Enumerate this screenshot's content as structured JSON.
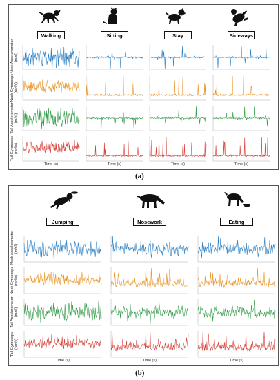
{
  "panel_a": {
    "caption": "(a)",
    "activities": [
      "Walking",
      "Sitting",
      "Stay",
      "Sideways"
    ],
    "rows": [
      {
        "label": "Neck Accelerometer",
        "unit": "(m/s²)",
        "color": "#2a7fc4"
      },
      {
        "label": "Neck Gyroscope",
        "unit": "(rad/s)",
        "color": "#e8952a"
      },
      {
        "label": "Tail Accelerometer",
        "unit": "(m/s²)",
        "color": "#2f9a45"
      },
      {
        "label": "Tail Gyroscope",
        "unit": "(rad/s)",
        "color": "#d43a32"
      }
    ],
    "xlabel": "Time (s)"
  },
  "panel_b": {
    "caption": "(b)",
    "activities": [
      "Jumping",
      "Nosework",
      "Eating"
    ],
    "rows": [
      {
        "label": "Neck Accelerometer",
        "unit": "(m/s²)",
        "color": "#2a7fc4"
      },
      {
        "label": "Neck Gyroscope",
        "unit": "(rad/s)",
        "color": "#e8952a"
      },
      {
        "label": "Tail Accelerometer",
        "unit": "(m/s²)",
        "color": "#2f9a45"
      },
      {
        "label": "Tail Gyroscope",
        "unit": "(rad/s)",
        "color": "#d43a32"
      }
    ],
    "xlabel": "Time (s)"
  },
  "icons": [
    "dog-walking-icon",
    "dog-sitting-icon",
    "dog-stay-icon",
    "dog-sideways-icon",
    "dog-jumping-icon",
    "dog-nosework-icon",
    "dog-eating-icon"
  ],
  "chart_data": [
    {
      "type": "line",
      "title": "",
      "panel": "a",
      "columns": [
        "Walking",
        "Sitting",
        "Stay",
        "Sideways"
      ],
      "rows": [
        "Neck Accelerometer (m/s²)",
        "Neck Gyroscope (rad/s)",
        "Tail Accelerometer (m/s²)",
        "Tail Gyroscope (rad/s)"
      ],
      "xlabel": "Time (s)",
      "note": "Small-multiple sensor time-series; signal amplitude per cell is qualitative."
    },
    {
      "type": "line",
      "title": "",
      "panel": "b",
      "columns": [
        "Jumping",
        "Nosework",
        "Eating"
      ],
      "rows": [
        "Neck Accelerometer (m/s²)",
        "Neck Gyroscope (rad/s)",
        "Tail Accelerometer (m/s²)",
        "Tail Gyroscope (rad/s)"
      ],
      "xlabel": "Time (s)"
    }
  ]
}
